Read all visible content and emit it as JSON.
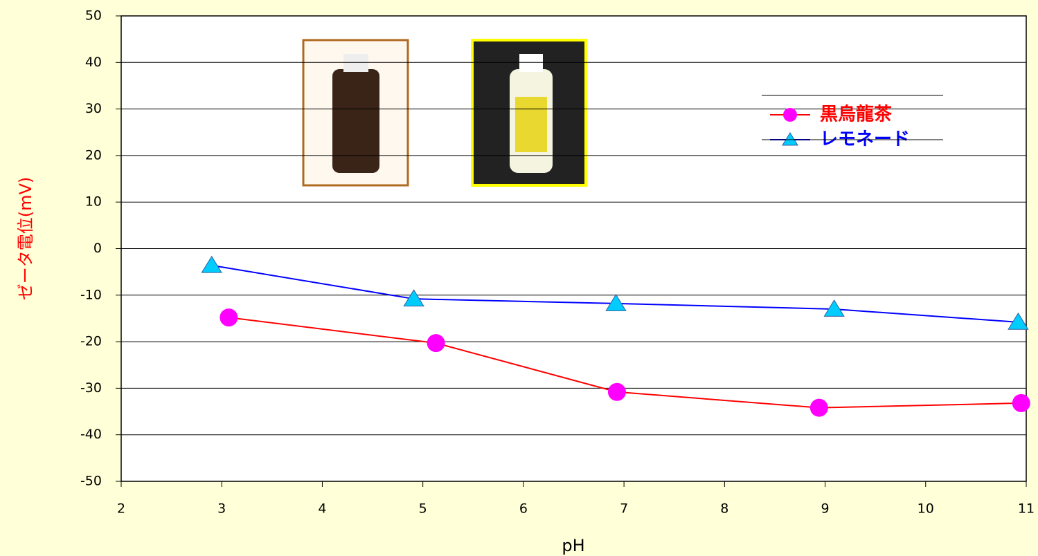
{
  "chart_data": {
    "type": "line",
    "x_label": "pH",
    "y_label": "ゼータ電位(mV)",
    "xlim": [
      2,
      11
    ],
    "xticks": [
      2,
      3,
      4,
      5,
      6,
      7,
      8,
      9,
      10,
      11
    ],
    "ylim": [
      -50,
      50
    ],
    "yticks": [
      -50,
      -40,
      -30,
      -20,
      -10,
      0,
      10,
      20,
      30,
      40,
      50
    ],
    "grid": true,
    "legend": "upper right",
    "series": [
      {
        "name": "黒烏龍茶",
        "color": "#ff0000",
        "marker_color": "#ff00ff",
        "marker": "circle",
        "x": [
          3.07,
          5.13,
          6.93,
          8.94,
          10.95
        ],
        "values": [
          -14.8,
          -20.3,
          -30.8,
          -34.2,
          -33.2
        ]
      },
      {
        "name": "レモネード",
        "color": "#0000ff",
        "marker_color": "#00ccff",
        "marker": "triangle",
        "x": [
          2.9,
          4.91,
          6.92,
          9.09,
          10.92
        ],
        "values": [
          -3.6,
          -10.8,
          -11.8,
          -13.0,
          -15.8
        ]
      }
    ]
  }
}
